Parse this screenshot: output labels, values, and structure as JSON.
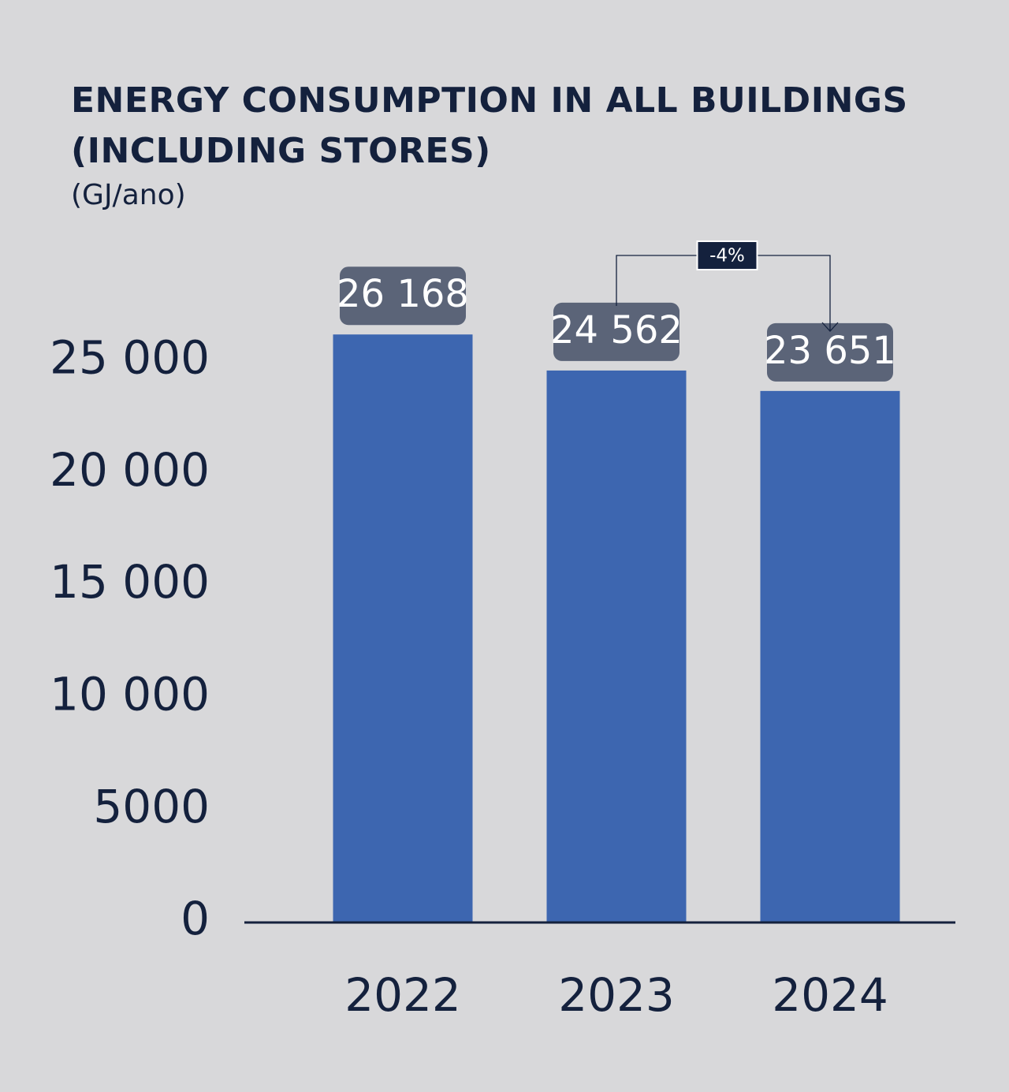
{
  "chart_data": {
    "type": "bar",
    "title": "ENERGY CONSUMPTION IN ALL BUILDINGS (INCLUDING STORES)",
    "subtitle": "(GJ/ano)",
    "xlabel": "",
    "ylabel": "",
    "categories": [
      "2022",
      "2023",
      "2024"
    ],
    "values": [
      26168,
      24562,
      23651
    ],
    "value_labels": [
      "26 168",
      "24 562",
      "23 651"
    ],
    "y_ticks": [
      {
        "value": 25000,
        "label": "25 000"
      },
      {
        "value": 20000,
        "label": "20 000"
      },
      {
        "value": 15000,
        "label": "15 000"
      },
      {
        "value": 10000,
        "label": "10 000"
      },
      {
        "value": 5000,
        "label": "5000"
      },
      {
        "value": 0,
        "label": "0"
      }
    ],
    "annotation": {
      "label": "-4%",
      "from_category": "2023",
      "to_category": "2024"
    },
    "grid": false,
    "colors": {
      "background": "#d8d8da",
      "bar": "#3d66b0",
      "label_box": "#5b6478",
      "label_text": "#ffffff",
      "text": "#14213d",
      "axis": "#14213d",
      "annotation_box": "#14213d"
    }
  }
}
